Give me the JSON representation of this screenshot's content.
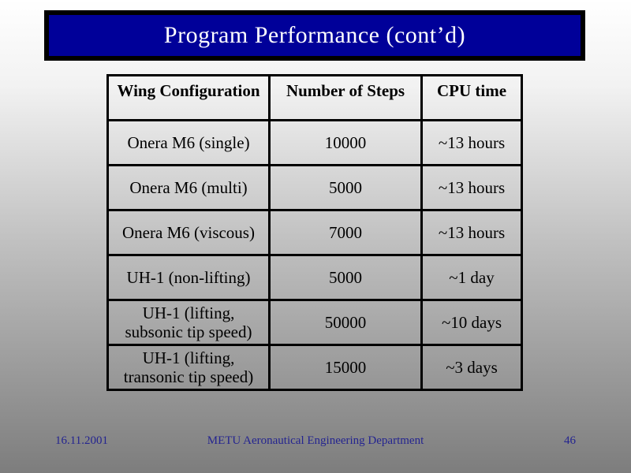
{
  "slide": {
    "title": "Program Performance (cont’d)",
    "colors": {
      "title_bg": "#000099",
      "title_border": "#000000",
      "title_text": "#ffffff",
      "background_top": "#ffffff",
      "background_bottom": "#7d7d7d",
      "table_border": "#000000",
      "footer_text": "#242490"
    }
  },
  "table": {
    "headers": [
      "Wing Configuration",
      "Number of Steps",
      "CPU time"
    ],
    "rows": [
      {
        "config": "Onera M6 (single)",
        "steps": "10000",
        "cpu": "~13 hours"
      },
      {
        "config": "Onera M6 (multi)",
        "steps": "5000",
        "cpu": "~13 hours"
      },
      {
        "config": "Onera M6 (viscous)",
        "steps": "7000",
        "cpu": "~13 hours"
      },
      {
        "config": "UH-1 (non-lifting)",
        "steps": "5000",
        "cpu": "~1 day"
      },
      {
        "config": "UH-1 (lifting, subsonic tip speed)",
        "steps": "50000",
        "cpu": "~10 days"
      },
      {
        "config": "UH-1 (lifting, transonic tip speed)",
        "steps": "15000",
        "cpu": "~3 days"
      }
    ]
  },
  "footer": {
    "date": "16.11.2001",
    "department": "METU Aeronautical Engineering Department",
    "page_number": "46"
  }
}
